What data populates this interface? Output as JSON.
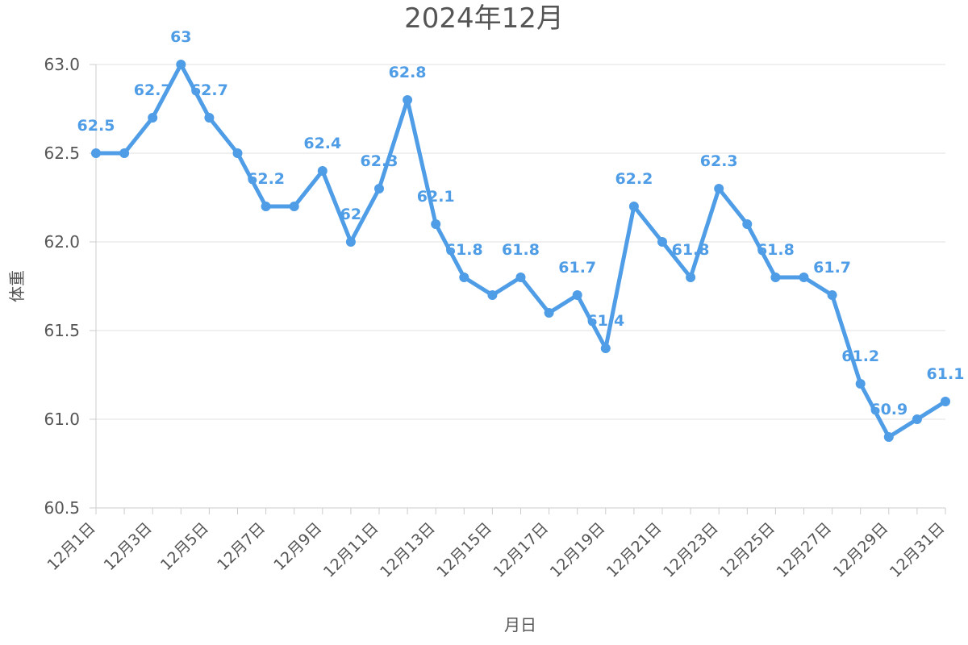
{
  "chart_data": {
    "type": "line",
    "title": "2024年12月",
    "xlabel": "月日",
    "ylabel": "体重",
    "ylim": [
      60.5,
      63.0
    ],
    "ytick_values": [
      60.5,
      61.0,
      61.5,
      62.0,
      62.5,
      63.0
    ],
    "ytick_labels": [
      "60.5",
      "61.0",
      "61.5",
      "62.0",
      "62.5",
      "63.0"
    ],
    "categories": [
      "12月1日",
      "12月2日",
      "12月3日",
      "12月4日",
      "12月5日",
      "12月6日",
      "12月7日",
      "12月8日",
      "12月9日",
      "12月10日",
      "12月11日",
      "12月12日",
      "12月13日",
      "12月14日",
      "12月15日",
      "12月16日",
      "12月17日",
      "12月18日",
      "12月19日",
      "12月20日",
      "12月21日",
      "12月22日",
      "12月23日",
      "12月24日",
      "12月25日",
      "12月26日",
      "12月27日",
      "12月28日",
      "12月29日",
      "12月30日",
      "12月31日"
    ],
    "xtick_labels": [
      "12月1日",
      "12月3日",
      "12月5日",
      "12月7日",
      "12月9日",
      "12月11日",
      "12月13日",
      "12月15日",
      "12月17日",
      "12月19日",
      "12月21日",
      "12月23日",
      "12月25日",
      "12月27日",
      "12月29日",
      "12月31日"
    ],
    "series": [
      {
        "values": [
          62.5,
          62.5,
          62.7,
          63.0,
          62.7,
          62.5,
          62.2,
          62.2,
          62.4,
          62.0,
          62.3,
          62.8,
          62.1,
          61.8,
          61.7,
          61.8,
          61.6,
          61.7,
          61.4,
          62.2,
          62.0,
          61.8,
          62.3,
          62.1,
          61.8,
          61.8,
          61.7,
          61.2,
          60.9,
          61.0,
          61.1
        ]
      }
    ],
    "data_labels": [
      {
        "index": 0,
        "text": "62.5"
      },
      {
        "index": 2,
        "text": "62.7"
      },
      {
        "index": 3,
        "text": "63"
      },
      {
        "index": 4,
        "text": "62.7"
      },
      {
        "index": 6,
        "text": "62.2"
      },
      {
        "index": 8,
        "text": "62.4"
      },
      {
        "index": 9,
        "text": "62"
      },
      {
        "index": 10,
        "text": "62.3"
      },
      {
        "index": 11,
        "text": "62.8"
      },
      {
        "index": 12,
        "text": "62.1"
      },
      {
        "index": 13,
        "text": "61.8"
      },
      {
        "index": 15,
        "text": "61.8"
      },
      {
        "index": 17,
        "text": "61.7"
      },
      {
        "index": 18,
        "text": "61.4"
      },
      {
        "index": 19,
        "text": "62.2"
      },
      {
        "index": 21,
        "text": "61.8"
      },
      {
        "index": 22,
        "text": "62.3"
      },
      {
        "index": 24,
        "text": "61.8"
      },
      {
        "index": 26,
        "text": "61.7"
      },
      {
        "index": 27,
        "text": "61.2"
      },
      {
        "index": 28,
        "text": "60.9"
      },
      {
        "index": 30,
        "text": "61.1"
      }
    ],
    "colors": {
      "line": "#4f9de6",
      "grid": "#e0e0e0",
      "text": "#555555"
    },
    "grid": true,
    "legend": "none"
  }
}
